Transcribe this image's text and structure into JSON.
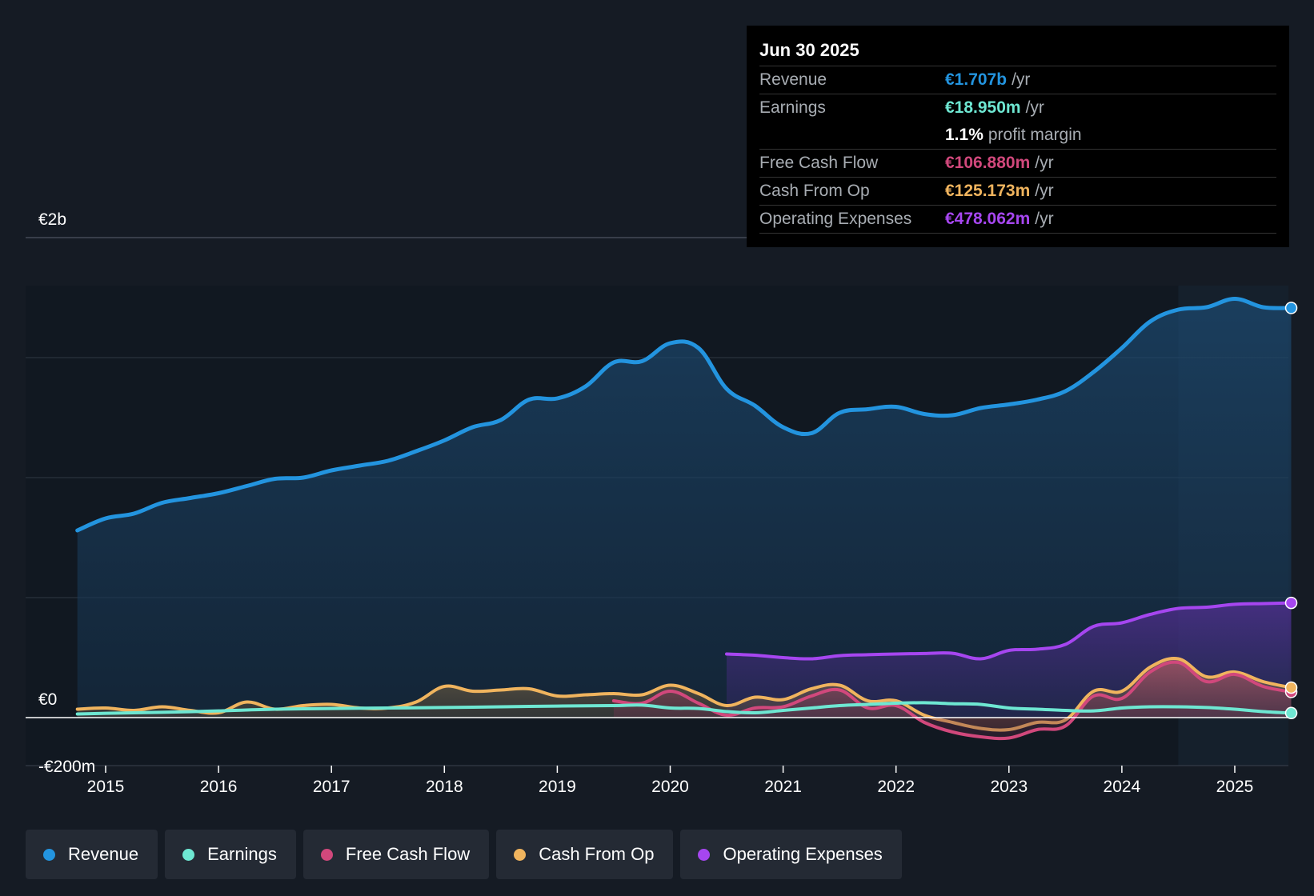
{
  "tooltip": {
    "date": "Jun 30 2025",
    "rows": [
      {
        "label": "Revenue",
        "value": "€1.707b",
        "unit": "/yr",
        "color": "#2394df"
      },
      {
        "label": "Earnings",
        "value": "€18.950m",
        "unit": "/yr",
        "color": "#6ee7d2"
      },
      {
        "label": "",
        "value": "1.1%",
        "unit": "profit margin",
        "color": "#ffffff"
      },
      {
        "label": "Free Cash Flow",
        "value": "€106.880m",
        "unit": "/yr",
        "color": "#d1487c"
      },
      {
        "label": "Cash From Op",
        "value": "€125.173m",
        "unit": "/yr",
        "color": "#f0b45e"
      },
      {
        "label": "Operating Expenses",
        "value": "€478.062m",
        "unit": "/yr",
        "color": "#a646f0"
      }
    ]
  },
  "legend": [
    {
      "label": "Revenue",
      "color": "#2394df"
    },
    {
      "label": "Earnings",
      "color": "#6ee7d2"
    },
    {
      "label": "Free Cash Flow",
      "color": "#d1487c"
    },
    {
      "label": "Cash From Op",
      "color": "#f0b45e"
    },
    {
      "label": "Operating Expenses",
      "color": "#a646f0"
    }
  ],
  "chart_data": {
    "type": "area",
    "title": "",
    "y_tick_labels": [
      "€2b",
      "€0",
      "-€200m"
    ],
    "y_ticks": [
      2000,
      0,
      -200
    ],
    "ylim": [
      -200,
      2000
    ],
    "xlim": [
      2014.5,
      2025.5
    ],
    "x_tick_labels": [
      "2015",
      "2016",
      "2017",
      "2018",
      "2019",
      "2020",
      "2021",
      "2022",
      "2023",
      "2024",
      "2025"
    ],
    "x_ticks": [
      2015,
      2016,
      2017,
      2018,
      2019,
      2020,
      2021,
      2022,
      2023,
      2024,
      2025
    ],
    "forecast_shade_start": 2024.5,
    "series": [
      {
        "name": "Revenue",
        "color": "#2394df",
        "points": [
          [
            2014.75,
            780
          ],
          [
            2015.0,
            830
          ],
          [
            2015.25,
            850
          ],
          [
            2015.5,
            895
          ],
          [
            2015.75,
            915
          ],
          [
            2016.0,
            935
          ],
          [
            2016.25,
            965
          ],
          [
            2016.5,
            995
          ],
          [
            2016.75,
            1000
          ],
          [
            2017.0,
            1030
          ],
          [
            2017.25,
            1050
          ],
          [
            2017.5,
            1070
          ],
          [
            2017.75,
            1110
          ],
          [
            2018.0,
            1155
          ],
          [
            2018.25,
            1210
          ],
          [
            2018.5,
            1240
          ],
          [
            2018.75,
            1325
          ],
          [
            2019.0,
            1330
          ],
          [
            2019.25,
            1380
          ],
          [
            2019.5,
            1480
          ],
          [
            2019.75,
            1485
          ],
          [
            2020.0,
            1560
          ],
          [
            2020.25,
            1540
          ],
          [
            2020.5,
            1370
          ],
          [
            2020.75,
            1300
          ],
          [
            2021.0,
            1210
          ],
          [
            2021.25,
            1185
          ],
          [
            2021.5,
            1270
          ],
          [
            2021.75,
            1285
          ],
          [
            2022.0,
            1295
          ],
          [
            2022.25,
            1265
          ],
          [
            2022.5,
            1260
          ],
          [
            2022.75,
            1290
          ],
          [
            2023.0,
            1305
          ],
          [
            2023.25,
            1325
          ],
          [
            2023.5,
            1360
          ],
          [
            2023.75,
            1440
          ],
          [
            2024.0,
            1540
          ],
          [
            2024.25,
            1650
          ],
          [
            2024.5,
            1700
          ],
          [
            2024.75,
            1710
          ],
          [
            2025.0,
            1745
          ],
          [
            2025.25,
            1710
          ],
          [
            2025.5,
            1707
          ]
        ]
      },
      {
        "name": "Earnings",
        "color": "#6ee7d2",
        "points": [
          [
            2014.75,
            15
          ],
          [
            2015.0,
            18
          ],
          [
            2015.5,
            22
          ],
          [
            2016.0,
            28
          ],
          [
            2016.5,
            35
          ],
          [
            2017.0,
            38
          ],
          [
            2017.5,
            40
          ],
          [
            2018.0,
            42
          ],
          [
            2018.5,
            45
          ],
          [
            2019.0,
            48
          ],
          [
            2019.5,
            50
          ],
          [
            2019.75,
            52
          ],
          [
            2020.0,
            40
          ],
          [
            2020.25,
            38
          ],
          [
            2020.5,
            25
          ],
          [
            2020.75,
            20
          ],
          [
            2021.0,
            30
          ],
          [
            2021.25,
            40
          ],
          [
            2021.5,
            50
          ],
          [
            2021.75,
            55
          ],
          [
            2022.0,
            60
          ],
          [
            2022.25,
            62
          ],
          [
            2022.5,
            58
          ],
          [
            2022.75,
            55
          ],
          [
            2023.0,
            40
          ],
          [
            2023.25,
            35
          ],
          [
            2023.5,
            30
          ],
          [
            2023.75,
            28
          ],
          [
            2024.0,
            40
          ],
          [
            2024.25,
            45
          ],
          [
            2024.5,
            45
          ],
          [
            2024.75,
            42
          ],
          [
            2025.0,
            35
          ],
          [
            2025.25,
            25
          ],
          [
            2025.5,
            19
          ]
        ]
      },
      {
        "name": "Free Cash Flow",
        "color": "#d1487c",
        "points": [
          [
            2019.5,
            70
          ],
          [
            2019.75,
            60
          ],
          [
            2020.0,
            110
          ],
          [
            2020.25,
            60
          ],
          [
            2020.5,
            10
          ],
          [
            2020.75,
            40
          ],
          [
            2021.0,
            45
          ],
          [
            2021.25,
            90
          ],
          [
            2021.5,
            115
          ],
          [
            2021.75,
            40
          ],
          [
            2022.0,
            50
          ],
          [
            2022.25,
            -20
          ],
          [
            2022.5,
            -60
          ],
          [
            2022.75,
            -80
          ],
          [
            2023.0,
            -85
          ],
          [
            2023.25,
            -50
          ],
          [
            2023.5,
            -35
          ],
          [
            2023.75,
            90
          ],
          [
            2024.0,
            80
          ],
          [
            2024.25,
            190
          ],
          [
            2024.5,
            230
          ],
          [
            2024.75,
            150
          ],
          [
            2025.0,
            180
          ],
          [
            2025.25,
            130
          ],
          [
            2025.5,
            107
          ]
        ]
      },
      {
        "name": "Cash From Op",
        "color": "#f0b45e",
        "points": [
          [
            2014.75,
            35
          ],
          [
            2015.0,
            40
          ],
          [
            2015.25,
            30
          ],
          [
            2015.5,
            45
          ],
          [
            2015.75,
            30
          ],
          [
            2016.0,
            20
          ],
          [
            2016.25,
            65
          ],
          [
            2016.5,
            35
          ],
          [
            2016.75,
            50
          ],
          [
            2017.0,
            55
          ],
          [
            2017.25,
            40
          ],
          [
            2017.5,
            40
          ],
          [
            2017.75,
            65
          ],
          [
            2018.0,
            130
          ],
          [
            2018.25,
            110
          ],
          [
            2018.5,
            115
          ],
          [
            2018.75,
            120
          ],
          [
            2019.0,
            90
          ],
          [
            2019.25,
            95
          ],
          [
            2019.5,
            100
          ],
          [
            2019.75,
            95
          ],
          [
            2020.0,
            135
          ],
          [
            2020.25,
            100
          ],
          [
            2020.5,
            50
          ],
          [
            2020.75,
            85
          ],
          [
            2021.0,
            75
          ],
          [
            2021.25,
            120
          ],
          [
            2021.5,
            135
          ],
          [
            2021.75,
            70
          ],
          [
            2022.0,
            70
          ],
          [
            2022.25,
            10
          ],
          [
            2022.5,
            -20
          ],
          [
            2022.75,
            -45
          ],
          [
            2023.0,
            -50
          ],
          [
            2023.25,
            -20
          ],
          [
            2023.5,
            -10
          ],
          [
            2023.75,
            110
          ],
          [
            2024.0,
            110
          ],
          [
            2024.25,
            210
          ],
          [
            2024.5,
            245
          ],
          [
            2024.75,
            170
          ],
          [
            2025.0,
            190
          ],
          [
            2025.25,
            150
          ],
          [
            2025.5,
            125
          ]
        ]
      },
      {
        "name": "Operating Expenses",
        "color": "#a646f0",
        "points": [
          [
            2020.5,
            265
          ],
          [
            2020.75,
            260
          ],
          [
            2021.0,
            250
          ],
          [
            2021.25,
            245
          ],
          [
            2021.5,
            258
          ],
          [
            2021.75,
            262
          ],
          [
            2022.0,
            265
          ],
          [
            2022.25,
            267
          ],
          [
            2022.5,
            268
          ],
          [
            2022.75,
            245
          ],
          [
            2023.0,
            280
          ],
          [
            2023.25,
            285
          ],
          [
            2023.5,
            305
          ],
          [
            2023.75,
            380
          ],
          [
            2024.0,
            395
          ],
          [
            2024.25,
            430
          ],
          [
            2024.5,
            455
          ],
          [
            2024.75,
            460
          ],
          [
            2025.0,
            472
          ],
          [
            2025.25,
            475
          ],
          [
            2025.5,
            478
          ]
        ]
      }
    ]
  }
}
